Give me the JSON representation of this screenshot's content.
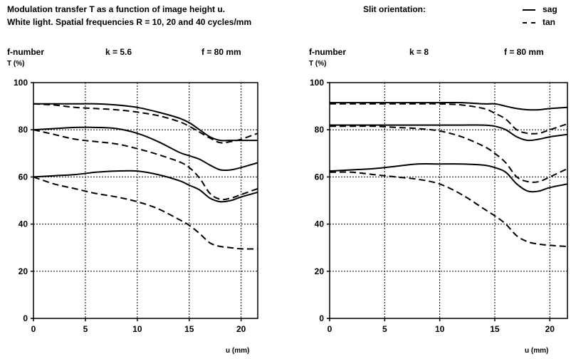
{
  "header": {
    "title_line1": "Modulation transfer T as a function of image height u.",
    "title_line2": "White light. Spatial frequencies R = 10, 20 and 40 cycles/mm",
    "slit_label": "Slit orientation:",
    "legend": [
      {
        "label": "sag",
        "style": "solid"
      },
      {
        "label": "tan",
        "style": "dashed"
      }
    ]
  },
  "panels": [
    {
      "fnumber_label": "f-number",
      "k_label": "k = 5.6",
      "f_label": "f = 80 mm",
      "ylabel": "T (%)",
      "xlabel": "u (mm)"
    },
    {
      "fnumber_label": "f-number",
      "k_label": "k = 8",
      "f_label": "f = 80 mm",
      "ylabel": "T (%)",
      "xlabel": "u (mm)"
    }
  ],
  "chart_data": [
    {
      "type": "line",
      "title": "f-number k = 5.6, f = 80 mm",
      "xlabel": "u (mm)",
      "ylabel": "T (%)",
      "xlim": [
        0,
        21.6
      ],
      "ylim": [
        0,
        100
      ],
      "xticks": [
        0,
        5,
        10,
        15,
        20
      ],
      "yticks": [
        0,
        20,
        40,
        60,
        80,
        100
      ],
      "grid": true,
      "x": [
        0,
        2,
        4,
        6,
        8,
        10,
        12,
        14,
        15,
        16,
        17,
        18,
        19,
        20,
        21.6
      ],
      "series": [
        {
          "name": "sag",
          "values": [
            91,
            91,
            91,
            91,
            90.5,
            89.5,
            87.5,
            85,
            83,
            80,
            77,
            75.5,
            75.5,
            75.5,
            75.5
          ]
        },
        {
          "name": "tan",
          "values": [
            91,
            90.5,
            89.5,
            89,
            88.5,
            87.5,
            86,
            83.5,
            81.5,
            79,
            76.5,
            74.5,
            75,
            76,
            78.5
          ]
        },
        {
          "name": "sag",
          "values": [
            80,
            80.5,
            81,
            81,
            80.5,
            78.5,
            75,
            70.5,
            69,
            67.5,
            65,
            63,
            63,
            64,
            66
          ]
        },
        {
          "name": "tan",
          "values": [
            80,
            78,
            76,
            75,
            74,
            72,
            69.5,
            66.5,
            64,
            59.5,
            53,
            50.5,
            51,
            52.5,
            55
          ]
        },
        {
          "name": "sag",
          "values": [
            60,
            60.5,
            61,
            62,
            62.5,
            62.5,
            61,
            58.5,
            56.5,
            54.5,
            51,
            49.5,
            50,
            51.5,
            53.5
          ]
        },
        {
          "name": "tan",
          "values": [
            60,
            57,
            55,
            53,
            51.5,
            49.5,
            46.5,
            42,
            39.5,
            36,
            32,
            30.5,
            30,
            29.5,
            29.5
          ]
        }
      ]
    },
    {
      "type": "line",
      "title": "f-number k = 8, f = 80 mm",
      "xlabel": "u (mm)",
      "ylabel": "T (%)",
      "xlim": [
        0,
        21.6
      ],
      "ylim": [
        0,
        100
      ],
      "xticks": [
        0,
        5,
        10,
        15,
        20
      ],
      "yticks": [
        0,
        20,
        40,
        60,
        80,
        100
      ],
      "grid": true,
      "x": [
        0,
        2,
        4,
        6,
        8,
        10,
        12,
        14,
        15,
        16,
        17,
        18,
        19,
        20,
        21.6
      ],
      "series": [
        {
          "name": "sag",
          "values": [
            91.5,
            91.5,
            91.5,
            91.5,
            91.5,
            91.5,
            91.5,
            91,
            91,
            90,
            89,
            88.5,
            88.5,
            89,
            89.5
          ]
        },
        {
          "name": "tan",
          "values": [
            91,
            91,
            91,
            91,
            91,
            91,
            90.5,
            89,
            87,
            84.5,
            80,
            78.5,
            78.5,
            80,
            82.5
          ]
        },
        {
          "name": "sag",
          "values": [
            82,
            82,
            82,
            82,
            82,
            82,
            82,
            82,
            81.5,
            80,
            77,
            75.5,
            76,
            77,
            78
          ]
        },
        {
          "name": "tan",
          "values": [
            81.5,
            81.5,
            81.5,
            81,
            80.5,
            79.5,
            77,
            73,
            70,
            66,
            60,
            58,
            58,
            60,
            63.5
          ]
        },
        {
          "name": "sag",
          "values": [
            62.5,
            63,
            63.5,
            64.5,
            65.5,
            65.5,
            65.5,
            65,
            64,
            62,
            57,
            54,
            54,
            55.5,
            57
          ]
        },
        {
          "name": "tan",
          "values": [
            62,
            62,
            61,
            60,
            59,
            57,
            52.5,
            46.5,
            43.5,
            40,
            35,
            32.5,
            31.5,
            31,
            30.5
          ]
        }
      ]
    }
  ]
}
